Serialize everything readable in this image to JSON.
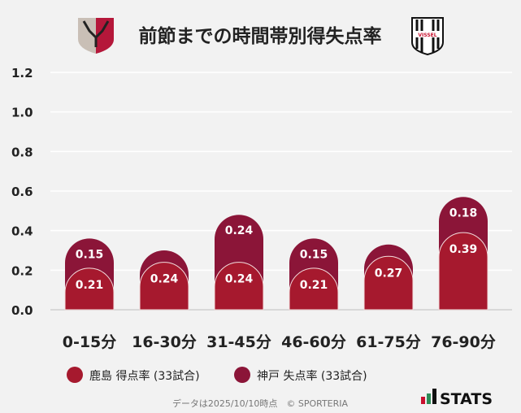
{
  "chart_data": {
    "type": "bar",
    "stacked": true,
    "title": "前節までの時間帯別得失点率",
    "categories": [
      "0-15分",
      "16-30分",
      "31-45分",
      "46-60分",
      "61-75分",
      "76-90分"
    ],
    "series": [
      {
        "name": "鹿島 得点率 (33試合)",
        "color": "#a6192e",
        "values": [
          0.21,
          0.24,
          0.24,
          0.21,
          0.27,
          0.39
        ],
        "labels": [
          "0.21",
          "0.24",
          "0.24",
          "0.21",
          "0.27",
          "0.39"
        ]
      },
      {
        "name": "神戸 失点率 (33試合)",
        "color": "#8b1538",
        "values": [
          0.15,
          0.06,
          0.24,
          0.15,
          0.06,
          0.18
        ],
        "labels": [
          "0.15",
          "",
          "0.24",
          "0.15",
          "",
          "0.18"
        ]
      }
    ],
    "yticks": [
      "0.0",
      "0.2",
      "0.4",
      "0.6",
      "0.8",
      "1.0",
      "1.2"
    ],
    "ylim": [
      0,
      1.2
    ],
    "grid": true,
    "legend": "bottom-left"
  },
  "logos": {
    "home": "Antlers",
    "away": "VISSEL",
    "brand": "STATS"
  },
  "footer": "データは2025/10/10時点　© SPORTERIA"
}
